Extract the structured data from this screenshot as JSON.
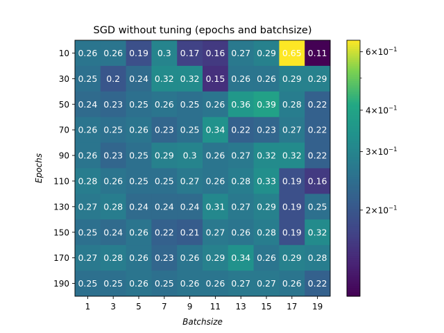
{
  "chart_data": {
    "type": "heatmap",
    "title": "SGD without tuning (epochs and batchsize)",
    "xlabel": "Batchsize",
    "ylabel": "Epochs",
    "x_categories": [
      "1",
      "3",
      "5",
      "7",
      "9",
      "11",
      "13",
      "15",
      "17",
      "19"
    ],
    "y_categories": [
      "10",
      "30",
      "50",
      "70",
      "90",
      "110",
      "130",
      "150",
      "170",
      "190"
    ],
    "values": [
      [
        0.26,
        0.26,
        0.19,
        0.3,
        0.17,
        0.16,
        0.27,
        0.29,
        0.65,
        0.11
      ],
      [
        0.25,
        0.2,
        0.24,
        0.32,
        0.32,
        0.15,
        0.26,
        0.26,
        0.29,
        0.29
      ],
      [
        0.24,
        0.23,
        0.25,
        0.26,
        0.25,
        0.26,
        0.36,
        0.39,
        0.28,
        0.22
      ],
      [
        0.26,
        0.25,
        0.26,
        0.23,
        0.25,
        0.34,
        0.22,
        0.23,
        0.27,
        0.22
      ],
      [
        0.26,
        0.23,
        0.25,
        0.29,
        0.3,
        0.26,
        0.27,
        0.32,
        0.32,
        0.22
      ],
      [
        0.28,
        0.26,
        0.25,
        0.25,
        0.27,
        0.26,
        0.28,
        0.33,
        0.19,
        0.16
      ],
      [
        0.27,
        0.28,
        0.24,
        0.24,
        0.24,
        0.31,
        0.27,
        0.29,
        0.19,
        0.25
      ],
      [
        0.25,
        0.24,
        0.26,
        0.22,
        0.21,
        0.27,
        0.26,
        0.28,
        0.19,
        0.32
      ],
      [
        0.27,
        0.28,
        0.26,
        0.23,
        0.26,
        0.29,
        0.34,
        0.26,
        0.29,
        0.28
      ],
      [
        0.25,
        0.25,
        0.26,
        0.25,
        0.26,
        0.26,
        0.27,
        0.27,
        0.26,
        0.22
      ]
    ],
    "cell_labels": [
      [
        "0.26",
        "0.26",
        "0.19",
        "0.3",
        "0.17",
        "0.16",
        "0.27",
        "0.29",
        "0.65",
        "0.11"
      ],
      [
        "0.25",
        "0.2",
        "0.24",
        "0.32",
        "0.32",
        "0.15",
        "0.26",
        "0.26",
        "0.29",
        "0.29"
      ],
      [
        "0.24",
        "0.23",
        "0.25",
        "0.26",
        "0.25",
        "0.26",
        "0.36",
        "0.39",
        "0.28",
        "0.22"
      ],
      [
        "0.26",
        "0.25",
        "0.26",
        "0.23",
        "0.25",
        "0.34",
        "0.22",
        "0.23",
        "0.27",
        "0.22"
      ],
      [
        "0.26",
        "0.23",
        "0.25",
        "0.29",
        "0.3",
        "0.26",
        "0.27",
        "0.32",
        "0.32",
        "0.22"
      ],
      [
        "0.28",
        "0.26",
        "0.25",
        "0.25",
        "0.27",
        "0.26",
        "0.28",
        "0.33",
        "0.19",
        "0.16"
      ],
      [
        "0.27",
        "0.28",
        "0.24",
        "0.24",
        "0.24",
        "0.31",
        "0.27",
        "0.29",
        "0.19",
        "0.25"
      ],
      [
        "0.25",
        "0.24",
        "0.26",
        "0.22",
        "0.21",
        "0.27",
        "0.26",
        "0.28",
        "0.19",
        "0.32"
      ],
      [
        "0.27",
        "0.28",
        "0.26",
        "0.23",
        "0.26",
        "0.29",
        "0.34",
        "0.26",
        "0.29",
        "0.28"
      ],
      [
        "0.25",
        "0.25",
        "0.26",
        "0.25",
        "0.26",
        "0.26",
        "0.27",
        "0.27",
        "0.26",
        "0.22"
      ]
    ],
    "colormap": "viridis",
    "color_scale": "log",
    "color_range": [
      0.11,
      0.65
    ],
    "colorbar_ticks": [
      {
        "value": 0.2,
        "base": "2",
        "exp": "−1"
      },
      {
        "value": 0.3,
        "base": "3",
        "exp": "−1"
      },
      {
        "value": 0.4,
        "base": "4",
        "exp": "−1"
      },
      {
        "value": 0.6,
        "base": "6",
        "exp": "−1"
      }
    ],
    "colorbar_minor_ticks": [
      0.5
    ],
    "colorbar_tick_times": "×",
    "colorbar_tick_mantissa_base": "10",
    "cell_text_color": "#ffffff",
    "grid": false,
    "colorbar_position": "right"
  }
}
